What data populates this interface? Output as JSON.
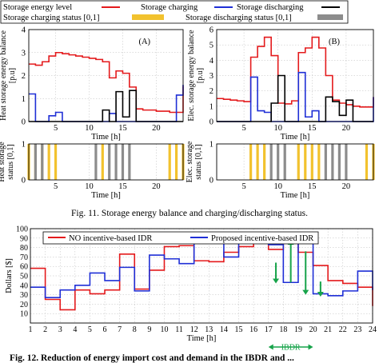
{
  "legend_top": {
    "energy_level": "Storage energy level",
    "charging": "Storage charging",
    "discharging": "Storage discharging",
    "charging_status": "Storage charging status [0,1]",
    "discharging_status": "Storage discharging status [0,1]"
  },
  "colors": {
    "energy": "#e41a1c",
    "charging": "#1f2fd6",
    "discharging": "#000000",
    "charge_status": "#f2c22e",
    "discharge_status": "#8c8c8c",
    "ibdr": "#17a34a"
  },
  "fig11_caption": "Fig. 11. Storage energy balance and charging/discharging status.",
  "fig12_caption": "Fig. 12. Reduction of energy import cost and demand in the IBDR and ...",
  "chart_data": [
    {
      "type": "line",
      "panel": "(A)",
      "ylabel": "Heat storage energy balance [p.u]",
      "xlabel": "Time [h]",
      "xlim": [
        1,
        24
      ],
      "ylim": [
        0,
        4
      ],
      "xticks": [
        5,
        10,
        15,
        20
      ],
      "yticks": [
        0,
        1,
        2,
        3,
        4
      ],
      "series": [
        {
          "name": "Storage energy level",
          "step": true,
          "x": [
            1,
            2,
            3,
            4,
            5,
            6,
            7,
            8,
            9,
            10,
            11,
            12,
            13,
            14,
            15,
            16,
            17,
            18,
            19,
            20,
            21,
            22,
            23,
            24
          ],
          "values": [
            2.5,
            2.45,
            2.6,
            2.85,
            3.0,
            2.95,
            2.9,
            2.85,
            2.8,
            2.75,
            2.7,
            2.6,
            1.9,
            2.2,
            2.1,
            1.5,
            0.55,
            0.5,
            0.5,
            0.45,
            0.45,
            0.4,
            0.4,
            1.55
          ]
        },
        {
          "name": "Storage charging",
          "step": true,
          "x": [
            1,
            2,
            3,
            4,
            5,
            6,
            7,
            8,
            9,
            10,
            11,
            12,
            13,
            14,
            15,
            16,
            17,
            18,
            19,
            20,
            21,
            22,
            23,
            24
          ],
          "values": [
            1.2,
            0,
            0,
            0.25,
            0.4,
            0,
            0,
            0,
            0,
            0,
            0,
            0,
            0.35,
            0,
            0,
            0,
            0,
            0,
            0,
            0,
            0,
            0,
            1.15,
            1.6
          ]
        },
        {
          "name": "Storage discharging",
          "step": true,
          "x": [
            1,
            2,
            3,
            4,
            5,
            6,
            7,
            8,
            9,
            10,
            11,
            12,
            13,
            14,
            15,
            16,
            17,
            18,
            19,
            20,
            21,
            22,
            23,
            24
          ],
          "values": [
            0,
            0,
            0,
            0,
            0,
            0,
            0,
            0,
            0,
            0,
            0,
            0.5,
            0,
            1.3,
            0.2,
            1.35,
            0,
            0,
            0,
            0,
            0,
            0,
            0,
            0
          ]
        }
      ]
    },
    {
      "type": "line",
      "panel": "(B)",
      "ylabel": "Elec. storage energy balance [p.u]",
      "xlabel": "Time [h]",
      "xlim": [
        1,
        24
      ],
      "ylim": [
        0,
        6
      ],
      "xticks": [
        5,
        10,
        15,
        20
      ],
      "yticks": [
        0,
        1,
        2,
        3,
        4,
        5,
        6
      ],
      "series": [
        {
          "name": "Storage energy level",
          "step": true,
          "x": [
            1,
            2,
            3,
            4,
            5,
            6,
            7,
            8,
            9,
            10,
            11,
            12,
            13,
            14,
            15,
            16,
            17,
            18,
            19,
            20,
            21,
            22,
            23,
            24
          ],
          "values": [
            1.5,
            1.45,
            1.4,
            1.35,
            1.3,
            4.2,
            4.9,
            5.5,
            4.3,
            1.2,
            1.15,
            1.35,
            4.5,
            4.8,
            5.5,
            4.8,
            3.0,
            1.4,
            1.2,
            1.1,
            1.0,
            0.95,
            0.95,
            1.6
          ]
        },
        {
          "name": "Storage charging",
          "step": true,
          "x": [
            1,
            2,
            3,
            4,
            5,
            6,
            7,
            8,
            9,
            10,
            11,
            12,
            13,
            14,
            15,
            16,
            17,
            18,
            19,
            20,
            21,
            22,
            23,
            24
          ],
          "values": [
            0,
            0,
            0,
            0,
            0,
            2.9,
            0.7,
            0.6,
            0,
            0,
            0,
            0,
            3.2,
            0.3,
            0.7,
            0,
            0,
            0,
            0,
            0,
            0,
            0,
            0,
            1.6
          ]
        },
        {
          "name": "Storage discharging",
          "step": true,
          "x": [
            1,
            2,
            3,
            4,
            5,
            6,
            7,
            8,
            9,
            10,
            11,
            12,
            13,
            14,
            15,
            16,
            17,
            18,
            19,
            20,
            21,
            22,
            23,
            24
          ],
          "values": [
            0,
            0,
            0,
            0,
            0,
            0,
            0,
            0,
            1.2,
            3.0,
            0,
            0,
            0,
            0,
            0,
            0,
            1.6,
            1.3,
            0.4,
            1.4,
            0,
            0,
            0,
            0
          ]
        }
      ]
    },
    {
      "type": "bar",
      "ylabel": "Heat storage status [0,1]",
      "xlabel": "Time [h]",
      "xlim": [
        1,
        24
      ],
      "ylim": [
        0,
        1
      ],
      "xticks": [
        5,
        10,
        15,
        20
      ],
      "yticks": [
        0,
        1
      ],
      "series": [
        {
          "name": "Storage charging status [0,1]",
          "x": [
            1,
            2,
            3,
            4,
            5,
            12,
            22,
            23,
            24
          ]
        },
        {
          "name": "Storage discharging status [0,1]",
          "x": [
            2,
            3,
            11,
            13,
            14,
            15,
            16
          ]
        }
      ]
    },
    {
      "type": "bar",
      "ylabel": "Elec. storage status [0,1]",
      "xlabel": "Time [h]",
      "xlim": [
        1,
        24
      ],
      "ylim": [
        0,
        1
      ],
      "xticks": [
        5,
        10,
        15,
        20
      ],
      "yticks": [
        0,
        1
      ],
      "series": [
        {
          "name": "Storage charging status [0,1]",
          "x": [
            6,
            7,
            8,
            13,
            14,
            15,
            16,
            23,
            24
          ]
        },
        {
          "name": "Storage discharging status [0,1]",
          "x": [
            9,
            10,
            11,
            17,
            18,
            19,
            20
          ]
        }
      ]
    },
    {
      "type": "line",
      "ylabel": "Dollars [$]",
      "xlabel": "Time [h]",
      "xlim": [
        1,
        24
      ],
      "ylim": [
        0,
        100
      ],
      "categories": [
        "1",
        "2",
        "3",
        "4",
        "5",
        "6",
        "7",
        "8",
        "9",
        "10",
        "11",
        "12",
        "13",
        "14",
        "15",
        "16",
        "17",
        "18",
        "19",
        "20",
        "21",
        "22",
        "23",
        "24"
      ],
      "yticks": [
        10,
        20,
        30,
        40,
        50,
        60,
        70,
        80,
        90,
        100
      ],
      "series": [
        {
          "name": "NO incentive-based IDR",
          "step": true,
          "values": [
            58,
            25,
            14,
            35,
            31,
            35,
            73,
            36,
            56,
            81,
            82,
            66,
            65,
            75,
            81,
            88,
            78,
            87,
            75,
            61,
            45,
            42,
            38,
            18
          ]
        },
        {
          "name": "Proposed incentive-based IDR",
          "step": true,
          "values": [
            38,
            27,
            35,
            40,
            53,
            45,
            59,
            34,
            72,
            68,
            63,
            85,
            85,
            70,
            86,
            91,
            83,
            43,
            88,
            31,
            29,
            34,
            55,
            35
          ]
        }
      ],
      "annotations": {
        "ibdr_label": "IBDR",
        "ibdr_range": [
          17,
          20
        ]
      }
    }
  ]
}
